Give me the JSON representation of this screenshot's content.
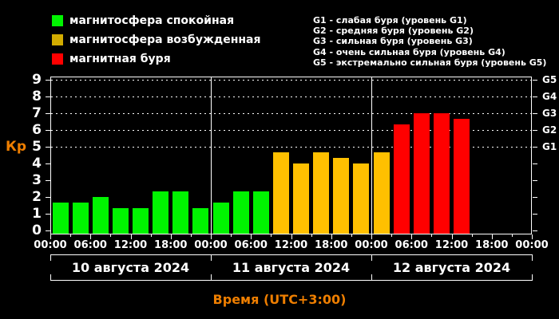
{
  "legend_left": {
    "items": [
      {
        "label": "магнитосфера спокойная",
        "color": "#00f400"
      },
      {
        "label": "магнитосфера возбужденная",
        "color": "#d2ac00"
      },
      {
        "label": "магнитная буря",
        "color": "#ff0000"
      }
    ]
  },
  "legend_right": {
    "items": [
      "G1 - слабая буря (уровень G1)",
      "G2 - средняя буря (уровень G2)",
      "G3 - сильная буря (уровень G3)",
      "G4 - очень сильная буря (уровень G4)",
      "G5 - экстремально сильная буря (уровень G5)"
    ]
  },
  "chart_data": {
    "type": "bar",
    "ylabel": "Кр",
    "xlabel": "Время (UTC+3:00)",
    "ylim": [
      0,
      9.4
    ],
    "y_ticks": [
      0,
      1,
      2,
      3,
      4,
      5,
      6,
      7,
      8,
      9
    ],
    "grid": "dotted horizontal lines only at storm levels Kp 5-9",
    "gridlines": [
      {
        "kp": 5,
        "label": "G1"
      },
      {
        "kp": 6,
        "label": "G2"
      },
      {
        "kp": 7,
        "label": "G3"
      },
      {
        "kp": 8,
        "label": "G4"
      },
      {
        "kp": 9,
        "label": "G5"
      }
    ],
    "bar_interval_hours": 3,
    "time_tick_labels": [
      "00:00",
      "06:00",
      "12:00",
      "18:00"
    ],
    "end_time_label": "00:00",
    "days": [
      {
        "date": "10 августа 2024",
        "values": [
          1.67,
          1.67,
          2.0,
          1.33,
          1.33,
          2.33,
          2.33,
          1.33
        ]
      },
      {
        "date": "11 августа 2024",
        "values": [
          1.67,
          2.33,
          2.33,
          4.67,
          4.0,
          4.67,
          4.33,
          4.0
        ]
      },
      {
        "date": "12 августа 2024",
        "values": [
          4.67,
          6.33,
          7.0,
          7.0,
          6.67,
          null,
          null,
          null
        ]
      }
    ],
    "bar_colors": {
      "quiet": "#00f400",
      "excited": "#ffc000",
      "storm": "#ff0000"
    },
    "color_thresholds": {
      "excited_min_kp": 4,
      "storm_min_kp": 5
    }
  }
}
